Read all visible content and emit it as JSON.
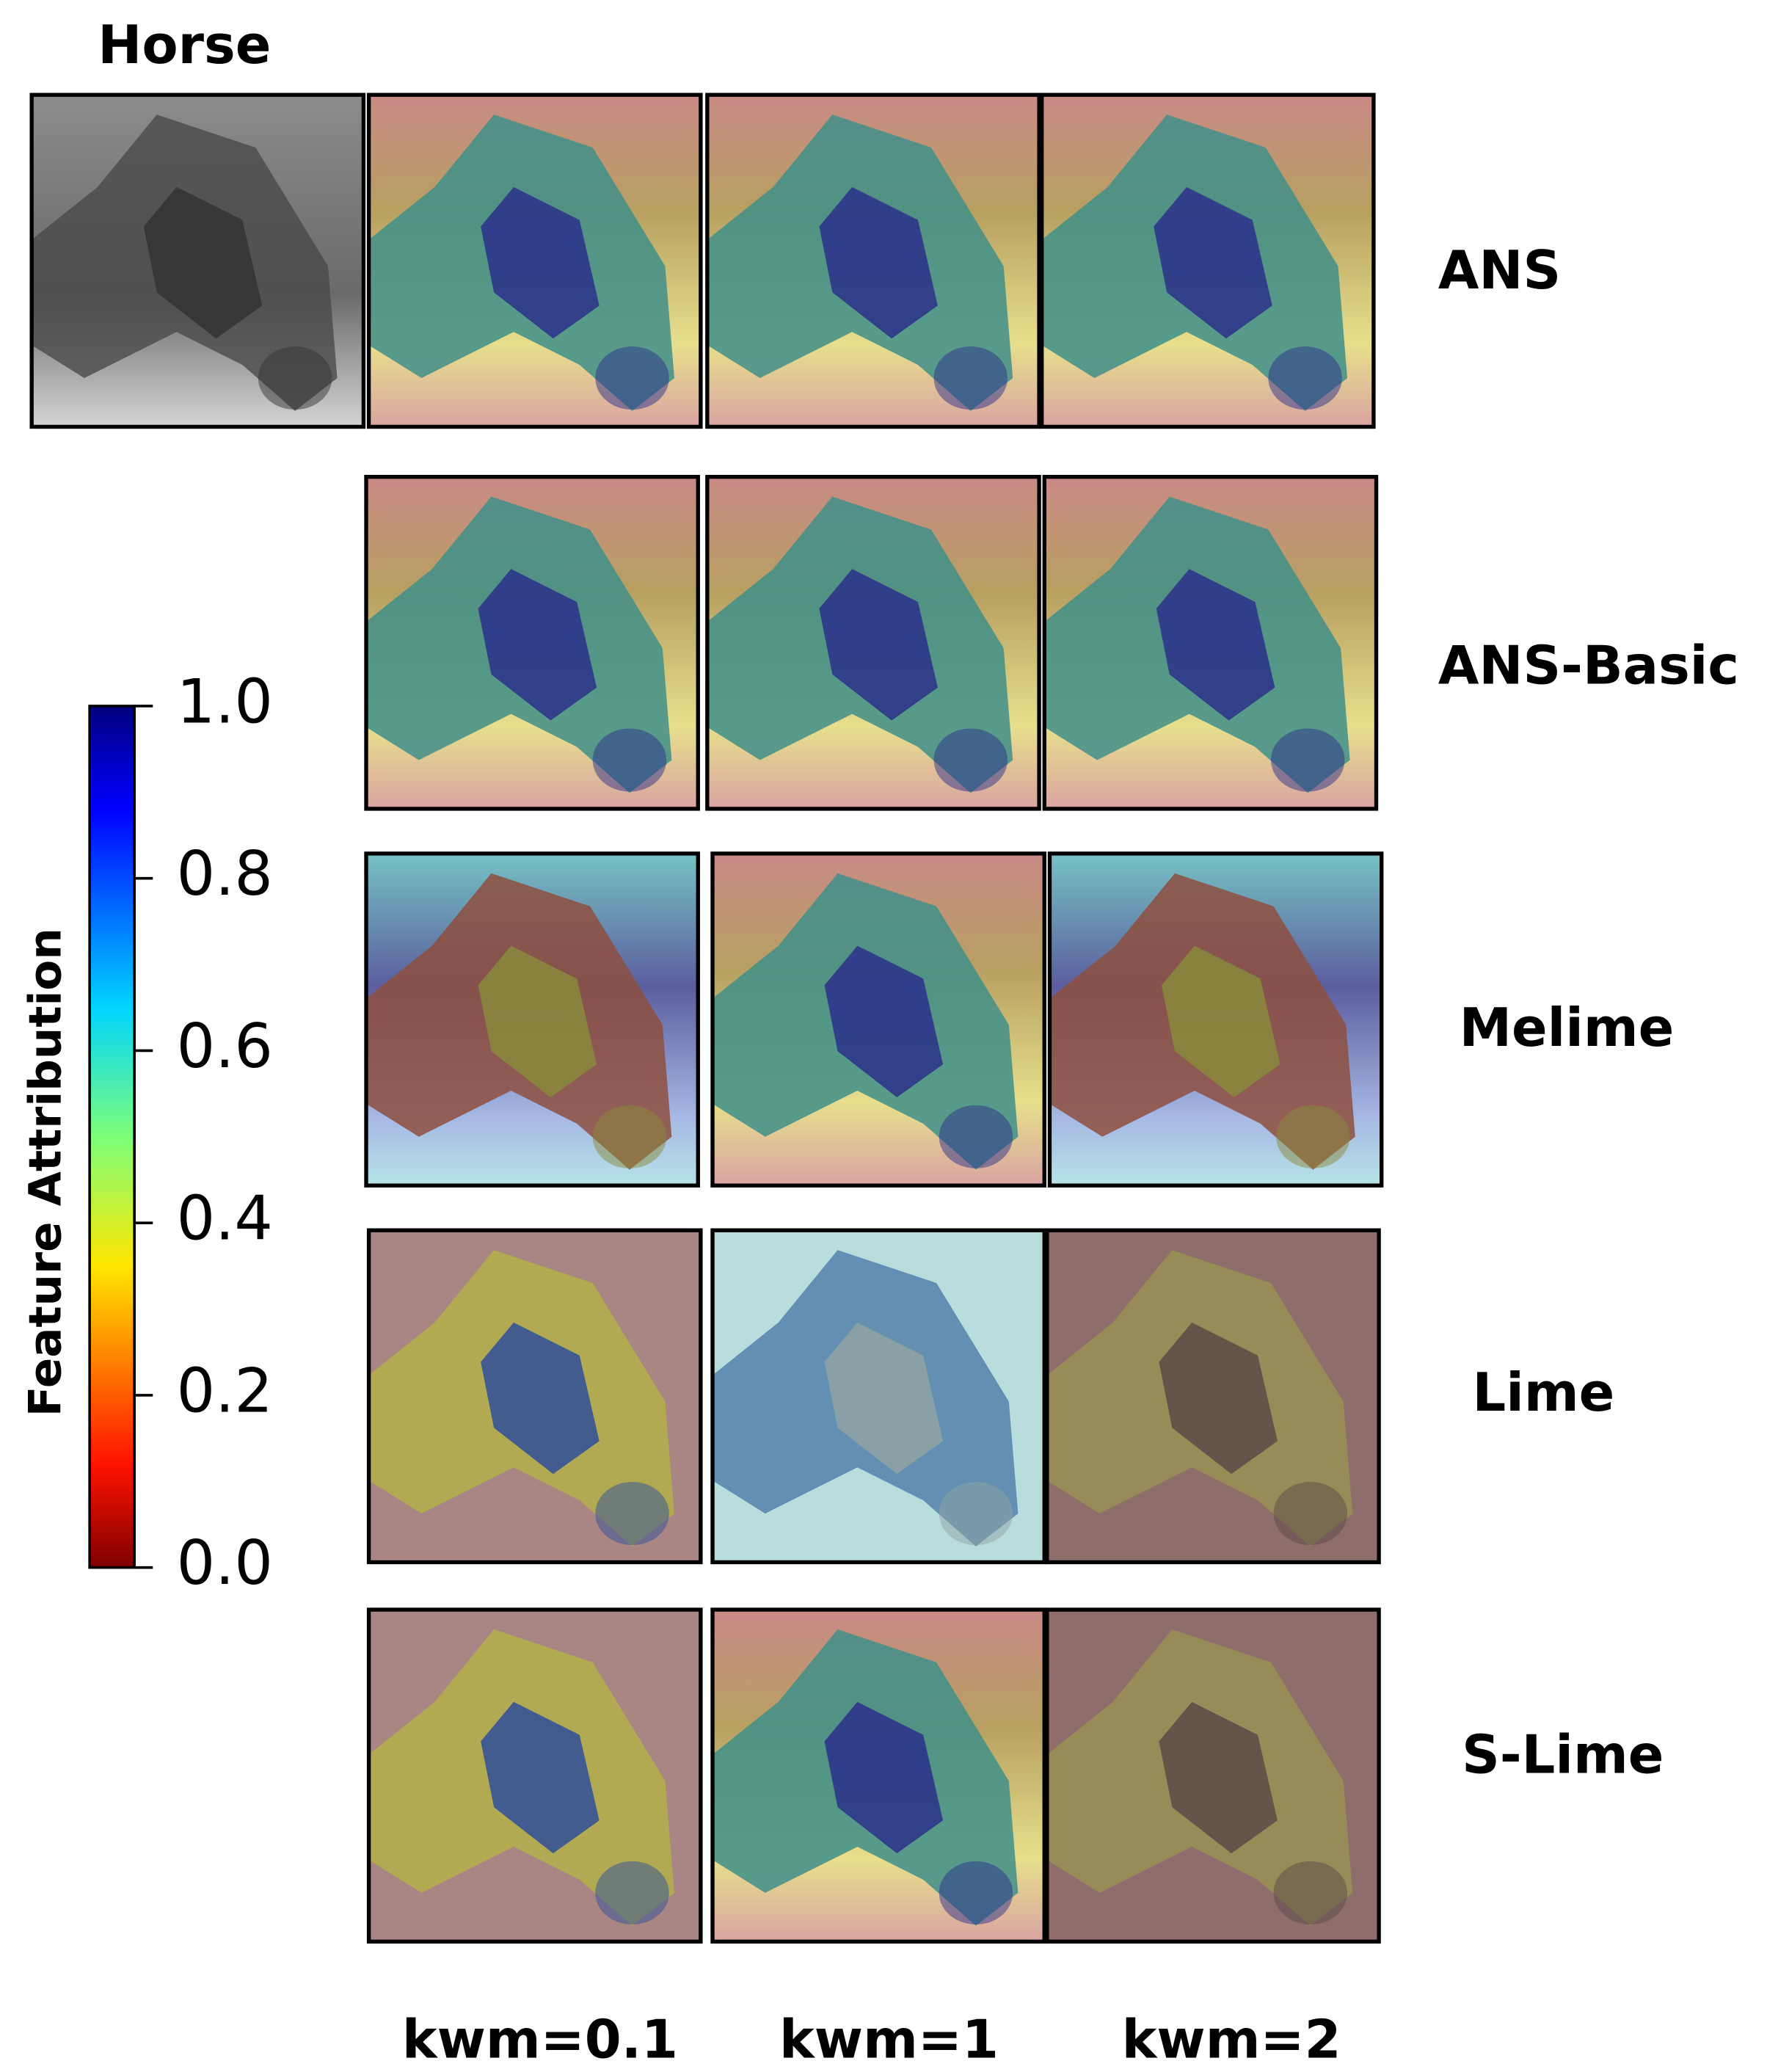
{
  "title": "Horse",
  "rows": [
    "ANS",
    "ANS-Basic",
    "Melime",
    "Lime",
    "S-Lime"
  ],
  "columns": [
    "kwm=0.1",
    "kwm=1",
    "kwm=2"
  ],
  "colorbar": {
    "label": "Feature Attribution",
    "lim": [
      0,
      1
    ],
    "ticks": [
      {
        "value": 0,
        "label": "0.0"
      },
      0.2,
      0.4,
      0.6,
      0.8,
      {
        "value": 1,
        "label": "1.0"
      }
    ]
  }
}
